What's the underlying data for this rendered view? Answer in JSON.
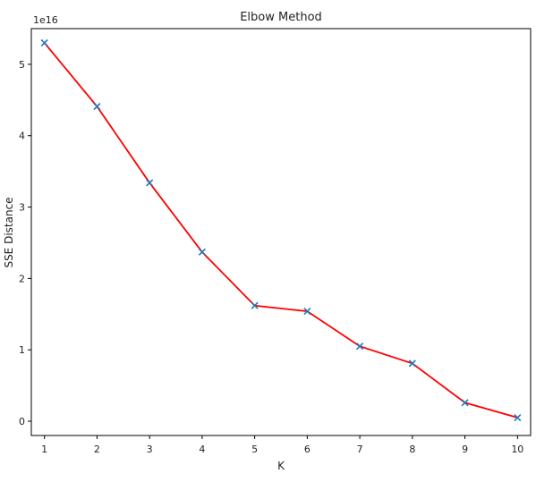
{
  "chart_data": {
    "type": "line",
    "title": "Elbow Method",
    "xlabel": "K",
    "ylabel": "SSE Distance",
    "y_offset_label": "1e16",
    "x": [
      1,
      2,
      3,
      4,
      5,
      6,
      7,
      8,
      9,
      10
    ],
    "xlim": [
      0.75,
      10.25
    ],
    "ylim": [
      -0.2,
      5.5
    ],
    "x_ticks": [
      1,
      2,
      3,
      4,
      5,
      6,
      7,
      8,
      9,
      10
    ],
    "y_ticks": [
      0,
      1,
      2,
      3,
      4,
      5
    ],
    "grid": false,
    "series": [
      {
        "values": [
          5.3,
          4.41,
          3.34,
          2.37,
          1.62,
          1.54,
          1.05,
          0.81,
          0.26,
          0.05
        ],
        "line_color": "#ff0000",
        "marker": "x",
        "marker_color": "#1f77b4"
      }
    ]
  }
}
